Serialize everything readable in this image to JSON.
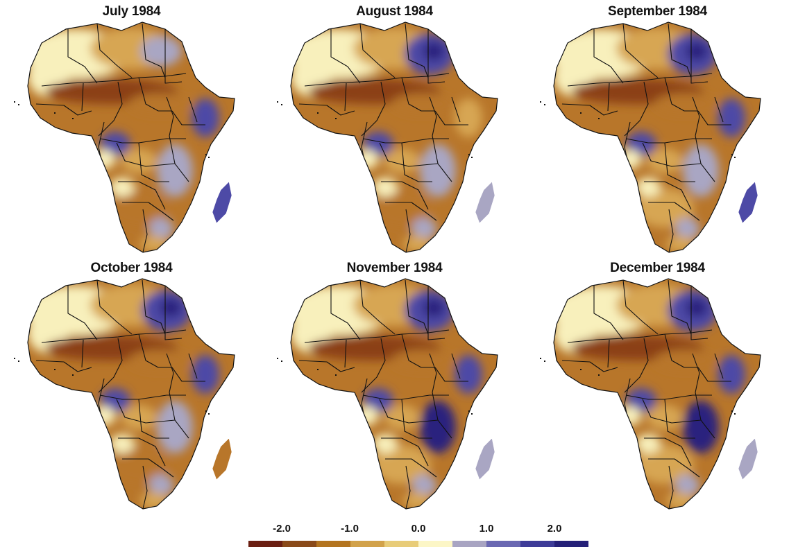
{
  "panels": [
    {
      "title": "July 1984",
      "northeast": "mixed",
      "horn": "wet",
      "east": "mixed",
      "south": "dry",
      "madagascar": "wet"
    },
    {
      "title": "August 1984",
      "northeast": "wet",
      "horn": "dry",
      "east": "mixed",
      "south": "dry",
      "madagascar": "mixed"
    },
    {
      "title": "September 1984",
      "northeast": "wet",
      "horn": "wet",
      "east": "mixed",
      "south": "mixed",
      "madagascar": "wet"
    },
    {
      "title": "October 1984",
      "northeast": "wet",
      "horn": "wet",
      "east": "mixed",
      "south": "dry",
      "madagascar": "dry"
    },
    {
      "title": "November 1984",
      "northeast": "wet",
      "horn": "wet",
      "east": "wet",
      "south": "mixed",
      "madagascar": "mixed"
    },
    {
      "title": "December 1984",
      "northeast": "wet",
      "horn": "wet",
      "east": "wet",
      "south": "mixed",
      "madagascar": "mixed"
    }
  ],
  "legend": {
    "tick_labels": [
      "-2.0",
      "-1.0",
      "0.0",
      "1.0",
      "2.0"
    ],
    "colors": [
      "#6b1f12",
      "#8a4a19",
      "#b3741f",
      "#d2a24a",
      "#e8cc78",
      "#fcf6c6",
      "#a8a4c2",
      "#6a68b2",
      "#3e3c98",
      "#252078"
    ]
  },
  "colors": {
    "very_dry": "#8b3f14",
    "dry": "#b8762a",
    "moderately_dry": "#d7a653",
    "neutral": "#f8f0bc",
    "slightly_wet": "#a9a6c3",
    "wet": "#4d4aa6",
    "very_wet": "#2a247e",
    "border": "#111111"
  }
}
